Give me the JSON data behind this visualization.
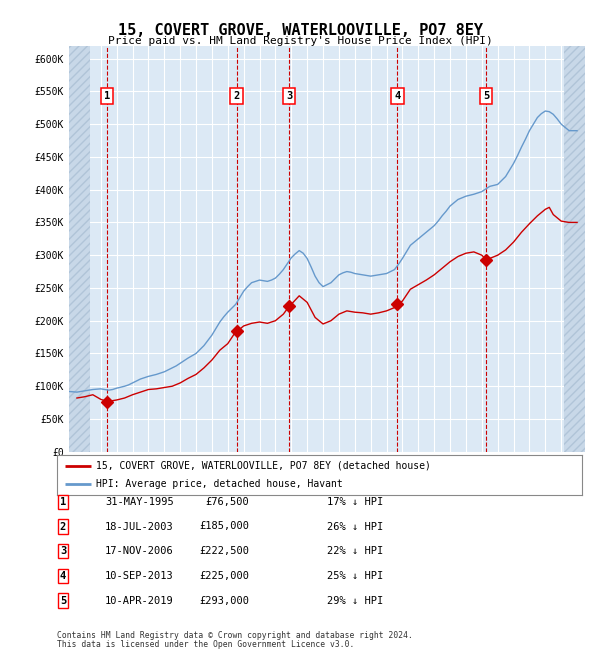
{
  "title": "15, COVERT GROVE, WATERLOOVILLE, PO7 8EY",
  "subtitle": "Price paid vs. HM Land Registry's House Price Index (HPI)",
  "footer_line1": "Contains HM Land Registry data © Crown copyright and database right 2024.",
  "footer_line2": "This data is licensed under the Open Government Licence v3.0.",
  "legend_red": "15, COVERT GROVE, WATERLOOVILLE, PO7 8EY (detached house)",
  "legend_blue": "HPI: Average price, detached house, Havant",
  "plot_bg_color": "#dce9f5",
  "grid_color": "#ffffff",
  "red_line_color": "#cc0000",
  "blue_line_color": "#6699cc",
  "sale_marker_color": "#cc0000",
  "dashed_line_color": "#cc0000",
  "ylim": [
    0,
    620000
  ],
  "yticks": [
    0,
    50000,
    100000,
    150000,
    200000,
    250000,
    300000,
    350000,
    400000,
    450000,
    500000,
    550000,
    600000
  ],
  "ytick_labels": [
    "£0",
    "£50K",
    "£100K",
    "£150K",
    "£200K",
    "£250K",
    "£300K",
    "£350K",
    "£400K",
    "£450K",
    "£500K",
    "£550K",
    "£600K"
  ],
  "xlim_start": 1993.0,
  "xlim_end": 2025.5,
  "sale_points": [
    {
      "num": 1,
      "year": 1995.42,
      "price": 76500,
      "date": "31-MAY-1995",
      "pct": "17%",
      "dir": "↓"
    },
    {
      "num": 2,
      "year": 2003.55,
      "price": 185000,
      "date": "18-JUL-2003",
      "pct": "26%",
      "dir": "↓"
    },
    {
      "num": 3,
      "year": 2006.88,
      "price": 222500,
      "date": "17-NOV-2006",
      "pct": "22%",
      "dir": "↓"
    },
    {
      "num": 4,
      "year": 2013.69,
      "price": 225000,
      "date": "10-SEP-2013",
      "pct": "25%",
      "dir": "↓"
    },
    {
      "num": 5,
      "year": 2019.27,
      "price": 293000,
      "date": "10-APR-2019",
      "pct": "29%",
      "dir": "↓"
    }
  ],
  "hpi_data": [
    [
      1993.0,
      92000
    ],
    [
      1993.25,
      91500
    ],
    [
      1993.5,
      91000
    ],
    [
      1993.75,
      92000
    ],
    [
      1994.0,
      93000
    ],
    [
      1994.25,
      94000
    ],
    [
      1994.5,
      95000
    ],
    [
      1994.75,
      95500
    ],
    [
      1995.0,
      96000
    ],
    [
      1995.25,
      95000
    ],
    [
      1995.5,
      94000
    ],
    [
      1995.75,
      95000
    ],
    [
      1996.0,
      97000
    ],
    [
      1996.25,
      98500
    ],
    [
      1996.5,
      100000
    ],
    [
      1996.75,
      102000
    ],
    [
      1997.0,
      105000
    ],
    [
      1997.25,
      108000
    ],
    [
      1997.5,
      111000
    ],
    [
      1997.75,
      113000
    ],
    [
      1998.0,
      115000
    ],
    [
      1998.25,
      116500
    ],
    [
      1998.5,
      118000
    ],
    [
      1998.75,
      120000
    ],
    [
      1999.0,
      122000
    ],
    [
      1999.25,
      125000
    ],
    [
      1999.5,
      128000
    ],
    [
      1999.75,
      131000
    ],
    [
      2000.0,
      135000
    ],
    [
      2000.25,
      139000
    ],
    [
      2000.5,
      143000
    ],
    [
      2000.75,
      146500
    ],
    [
      2001.0,
      150000
    ],
    [
      2001.25,
      156000
    ],
    [
      2001.5,
      162000
    ],
    [
      2001.75,
      170000
    ],
    [
      2002.0,
      178000
    ],
    [
      2002.25,
      188000
    ],
    [
      2002.5,
      198000
    ],
    [
      2002.75,
      206000
    ],
    [
      2003.0,
      213000
    ],
    [
      2003.25,
      219000
    ],
    [
      2003.5,
      225000
    ],
    [
      2003.75,
      235000
    ],
    [
      2004.0,
      245000
    ],
    [
      2004.25,
      252000
    ],
    [
      2004.5,
      258000
    ],
    [
      2004.75,
      260000
    ],
    [
      2005.0,
      262000
    ],
    [
      2005.25,
      261000
    ],
    [
      2005.5,
      260000
    ],
    [
      2005.75,
      262000
    ],
    [
      2006.0,
      265000
    ],
    [
      2006.25,
      271000
    ],
    [
      2006.5,
      278000
    ],
    [
      2006.75,
      287000
    ],
    [
      2007.0,
      296000
    ],
    [
      2007.25,
      302000
    ],
    [
      2007.5,
      307000
    ],
    [
      2007.75,
      303000
    ],
    [
      2008.0,
      295000
    ],
    [
      2008.25,
      282000
    ],
    [
      2008.5,
      268000
    ],
    [
      2008.75,
      258000
    ],
    [
      2009.0,
      252000
    ],
    [
      2009.25,
      255000
    ],
    [
      2009.5,
      258000
    ],
    [
      2009.75,
      264000
    ],
    [
      2010.0,
      270000
    ],
    [
      2010.25,
      273000
    ],
    [
      2010.5,
      275000
    ],
    [
      2010.75,
      274000
    ],
    [
      2011.0,
      272000
    ],
    [
      2011.25,
      271000
    ],
    [
      2011.5,
      270000
    ],
    [
      2011.75,
      269000
    ],
    [
      2012.0,
      268000
    ],
    [
      2012.25,
      269000
    ],
    [
      2012.5,
      270000
    ],
    [
      2012.75,
      271000
    ],
    [
      2013.0,
      272000
    ],
    [
      2013.25,
      275000
    ],
    [
      2013.5,
      278000
    ],
    [
      2013.75,
      286000
    ],
    [
      2014.0,
      295000
    ],
    [
      2014.25,
      305000
    ],
    [
      2014.5,
      315000
    ],
    [
      2014.75,
      320000
    ],
    [
      2015.0,
      325000
    ],
    [
      2015.25,
      330000
    ],
    [
      2015.5,
      335000
    ],
    [
      2015.75,
      340000
    ],
    [
      2016.0,
      345000
    ],
    [
      2016.25,
      352000
    ],
    [
      2016.5,
      360000
    ],
    [
      2016.75,
      367000
    ],
    [
      2017.0,
      375000
    ],
    [
      2017.25,
      380000
    ],
    [
      2017.5,
      385000
    ],
    [
      2017.75,
      387500
    ],
    [
      2018.0,
      390000
    ],
    [
      2018.25,
      391500
    ],
    [
      2018.5,
      393000
    ],
    [
      2018.75,
      395000
    ],
    [
      2019.0,
      397000
    ],
    [
      2019.25,
      401000
    ],
    [
      2019.5,
      405000
    ],
    [
      2019.75,
      406500
    ],
    [
      2020.0,
      408000
    ],
    [
      2020.25,
      414000
    ],
    [
      2020.5,
      420000
    ],
    [
      2020.75,
      430000
    ],
    [
      2021.0,
      440000
    ],
    [
      2021.25,
      452000
    ],
    [
      2021.5,
      465000
    ],
    [
      2021.75,
      477000
    ],
    [
      2022.0,
      490000
    ],
    [
      2022.25,
      500000
    ],
    [
      2022.5,
      510000
    ],
    [
      2022.75,
      516000
    ],
    [
      2023.0,
      520000
    ],
    [
      2023.25,
      519000
    ],
    [
      2023.5,
      515000
    ],
    [
      2023.75,
      508000
    ],
    [
      2024.0,
      500000
    ],
    [
      2024.25,
      495000
    ],
    [
      2024.5,
      490000
    ],
    [
      2024.75,
      490000
    ],
    [
      2025.0,
      490000
    ]
  ],
  "red_data": [
    [
      1993.5,
      82000
    ],
    [
      1994.0,
      84000
    ],
    [
      1994.5,
      87000
    ],
    [
      1995.0,
      80000
    ],
    [
      1995.42,
      76500
    ],
    [
      1995.5,
      77000
    ],
    [
      1996.0,
      79000
    ],
    [
      1996.5,
      82000
    ],
    [
      1997.0,
      87000
    ],
    [
      1997.5,
      91000
    ],
    [
      1998.0,
      95000
    ],
    [
      1998.5,
      96000
    ],
    [
      1999.0,
      98000
    ],
    [
      1999.5,
      100000
    ],
    [
      2000.0,
      105000
    ],
    [
      2000.5,
      112000
    ],
    [
      2001.0,
      118000
    ],
    [
      2001.5,
      128000
    ],
    [
      2002.0,
      140000
    ],
    [
      2002.5,
      155000
    ],
    [
      2003.0,
      165000
    ],
    [
      2003.55,
      185000
    ],
    [
      2003.8,
      188000
    ],
    [
      2004.0,
      192000
    ],
    [
      2004.5,
      196000
    ],
    [
      2005.0,
      198000
    ],
    [
      2005.5,
      196000
    ],
    [
      2006.0,
      200000
    ],
    [
      2006.5,
      210000
    ],
    [
      2006.88,
      222500
    ],
    [
      2007.0,
      225000
    ],
    [
      2007.5,
      238000
    ],
    [
      2008.0,
      228000
    ],
    [
      2008.5,
      205000
    ],
    [
      2009.0,
      195000
    ],
    [
      2009.5,
      200000
    ],
    [
      2010.0,
      210000
    ],
    [
      2010.5,
      215000
    ],
    [
      2011.0,
      213000
    ],
    [
      2011.5,
      212000
    ],
    [
      2012.0,
      210000
    ],
    [
      2012.5,
      212000
    ],
    [
      2013.0,
      215000
    ],
    [
      2013.5,
      220000
    ],
    [
      2013.69,
      225000
    ],
    [
      2014.0,
      230000
    ],
    [
      2014.5,
      248000
    ],
    [
      2015.0,
      255000
    ],
    [
      2015.5,
      262000
    ],
    [
      2016.0,
      270000
    ],
    [
      2016.5,
      280000
    ],
    [
      2017.0,
      290000
    ],
    [
      2017.5,
      298000
    ],
    [
      2018.0,
      303000
    ],
    [
      2018.5,
      305000
    ],
    [
      2019.0,
      300000
    ],
    [
      2019.27,
      293000
    ],
    [
      2019.5,
      295000
    ],
    [
      2020.0,
      300000
    ],
    [
      2020.5,
      308000
    ],
    [
      2021.0,
      320000
    ],
    [
      2021.5,
      335000
    ],
    [
      2022.0,
      348000
    ],
    [
      2022.5,
      360000
    ],
    [
      2023.0,
      370000
    ],
    [
      2023.25,
      373000
    ],
    [
      2023.5,
      362000
    ],
    [
      2024.0,
      352000
    ],
    [
      2024.5,
      350000
    ],
    [
      2025.0,
      350000
    ]
  ]
}
